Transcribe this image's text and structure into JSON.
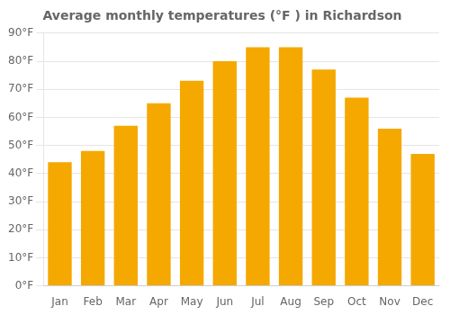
{
  "chart_data": {
    "type": "bar",
    "title": "Average monthly temperatures (°F ) in Richardson",
    "categories": [
      "Jan",
      "Feb",
      "Mar",
      "Apr",
      "May",
      "Jun",
      "Jul",
      "Aug",
      "Sep",
      "Oct",
      "Nov",
      "Dec"
    ],
    "values": [
      44,
      48,
      57,
      65,
      73,
      80,
      85,
      85,
      77,
      67,
      56,
      47
    ],
    "color": "#F5A800",
    "ylim": [
      0,
      90
    ],
    "yticks": [
      {
        "value": 0,
        "label": "0°F"
      },
      {
        "value": 10,
        "label": "10°F"
      },
      {
        "value": 20,
        "label": "20°F"
      },
      {
        "value": 30,
        "label": "30°F"
      },
      {
        "value": 40,
        "label": "40°F"
      },
      {
        "value": 50,
        "label": "50°F"
      },
      {
        "value": 60,
        "label": "60°F"
      },
      {
        "value": 70,
        "label": "70°F"
      },
      {
        "value": 80,
        "label": "80°F"
      },
      {
        "value": 90,
        "label": "90°F"
      }
    ],
    "grid": true
  }
}
